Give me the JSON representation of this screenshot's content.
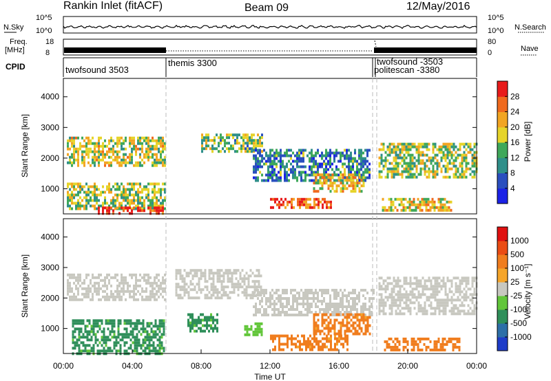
{
  "header": {
    "station": "Rankin Inlet (fitACF)",
    "beam": "Beam 09",
    "date": "12/May/2016"
  },
  "noise_panel": {
    "left_label": "N.Sky",
    "right_label": "N.Search",
    "ticks": [
      "10^5",
      "10^0"
    ]
  },
  "freq_panel": {
    "left_label_1": "Freq.",
    "left_label_2": "[MHz]",
    "right_label": "Nave",
    "left_ticks": [
      "18",
      "8"
    ],
    "right_ticks": [
      "80",
      "0"
    ]
  },
  "cpid_panel": {
    "label": "CPID",
    "programs": [
      {
        "name": "twofsound 3503",
        "start_h": 0
      },
      {
        "name": "themis 3300",
        "start_h": 6
      },
      {
        "name": "twofsound -3503",
        "start_h": 18
      },
      {
        "name": "politescan -3380",
        "start_h": 18.2
      }
    ]
  },
  "x_axis": {
    "label": "Time UT",
    "ticks": [
      "00:00",
      "04:00",
      "08:00",
      "12:00",
      "16:00",
      "20:00",
      "00:00"
    ]
  },
  "chart_data": [
    {
      "type": "heatmap",
      "name": "power",
      "ylabel": "Slant Range [km]",
      "yticks": [
        "1000",
        "2000",
        "3000",
        "4000"
      ],
      "ylim": [
        180,
        4600
      ],
      "xlim": [
        0,
        24
      ],
      "colorbar": {
        "label": "Power [dB]",
        "tick_labels": [
          "4",
          "8",
          "12",
          "16",
          "20",
          "24",
          "28"
        ],
        "colors": [
          "#1b22e6",
          "#2a4fbf",
          "#2f8f8a",
          "#3fa85a",
          "#e6d42a",
          "#f2a522",
          "#f06a1e",
          "#e81b1b"
        ]
      },
      "regions": [
        {
          "t0": 0.2,
          "t1": 5.9,
          "r0": 1800,
          "r1": 2700,
          "level": 0.55
        },
        {
          "t0": 0.2,
          "t1": 5.9,
          "r0": 350,
          "r1": 1200,
          "level": 0.5
        },
        {
          "t0": 2.0,
          "t1": 5.8,
          "r0": 180,
          "r1": 420,
          "level": 0.95
        },
        {
          "t0": 8.0,
          "t1": 11.5,
          "r0": 2200,
          "r1": 2800,
          "level": 0.45
        },
        {
          "t0": 11.0,
          "t1": 17.8,
          "r0": 1300,
          "r1": 2300,
          "level": 0.3
        },
        {
          "t0": 12.0,
          "t1": 15.5,
          "r0": 380,
          "r1": 700,
          "level": 0.85
        },
        {
          "t0": 14.5,
          "t1": 17.5,
          "r0": 900,
          "r1": 1500,
          "level": 0.65
        },
        {
          "t0": 18.3,
          "t1": 24.0,
          "r0": 1400,
          "r1": 2500,
          "level": 0.5
        },
        {
          "t0": 18.5,
          "t1": 22.5,
          "r0": 300,
          "r1": 700,
          "level": 0.6
        }
      ]
    },
    {
      "type": "heatmap",
      "name": "velocity",
      "ylabel": "Slant Range [km]",
      "yticks": [
        "1000",
        "2000",
        "3000",
        "4000"
      ],
      "ylim": [
        180,
        4600
      ],
      "xlim": [
        0,
        24
      ],
      "colorbar": {
        "label": "Velocity [m s⁻¹]",
        "tick_labels": [
          "1000",
          "500",
          "100",
          "25",
          "-25",
          "-100",
          "-500",
          "-1000"
        ],
        "colors": [
          "#1e3cc8",
          "#2d6fa8",
          "#2f8f5a",
          "#62c63a",
          "#c8c8c0",
          "#f5a52a",
          "#f07d1e",
          "#ea4c14",
          "#e01010"
        ]
      },
      "regions": [
        {
          "t0": 0.2,
          "t1": 5.9,
          "r0": 1900,
          "r1": 2800,
          "level": 0.5
        },
        {
          "t0": 6.5,
          "t1": 11.5,
          "r0": 2000,
          "r1": 2950,
          "level": 0.5
        },
        {
          "t0": 11.0,
          "t1": 18.0,
          "r0": 1400,
          "r1": 2300,
          "level": 0.5
        },
        {
          "t0": 18.3,
          "t1": 24.0,
          "r0": 1500,
          "r1": 2700,
          "level": 0.5
        },
        {
          "t0": 0.5,
          "t1": 5.8,
          "r0": 200,
          "r1": 1300,
          "level": 0.3
        },
        {
          "t0": 7.2,
          "t1": 9.0,
          "r0": 900,
          "r1": 1500,
          "level": 0.3
        },
        {
          "t0": 10.5,
          "t1": 11.5,
          "r0": 800,
          "r1": 1200,
          "level": 0.38
        },
        {
          "t0": 12.0,
          "t1": 16.5,
          "r0": 300,
          "r1": 800,
          "level": 0.7
        },
        {
          "t0": 14.5,
          "t1": 17.8,
          "r0": 800,
          "r1": 1500,
          "level": 0.7
        },
        {
          "t0": 18.5,
          "t1": 23.0,
          "r0": 300,
          "r1": 700,
          "level": 0.72
        }
      ]
    }
  ]
}
